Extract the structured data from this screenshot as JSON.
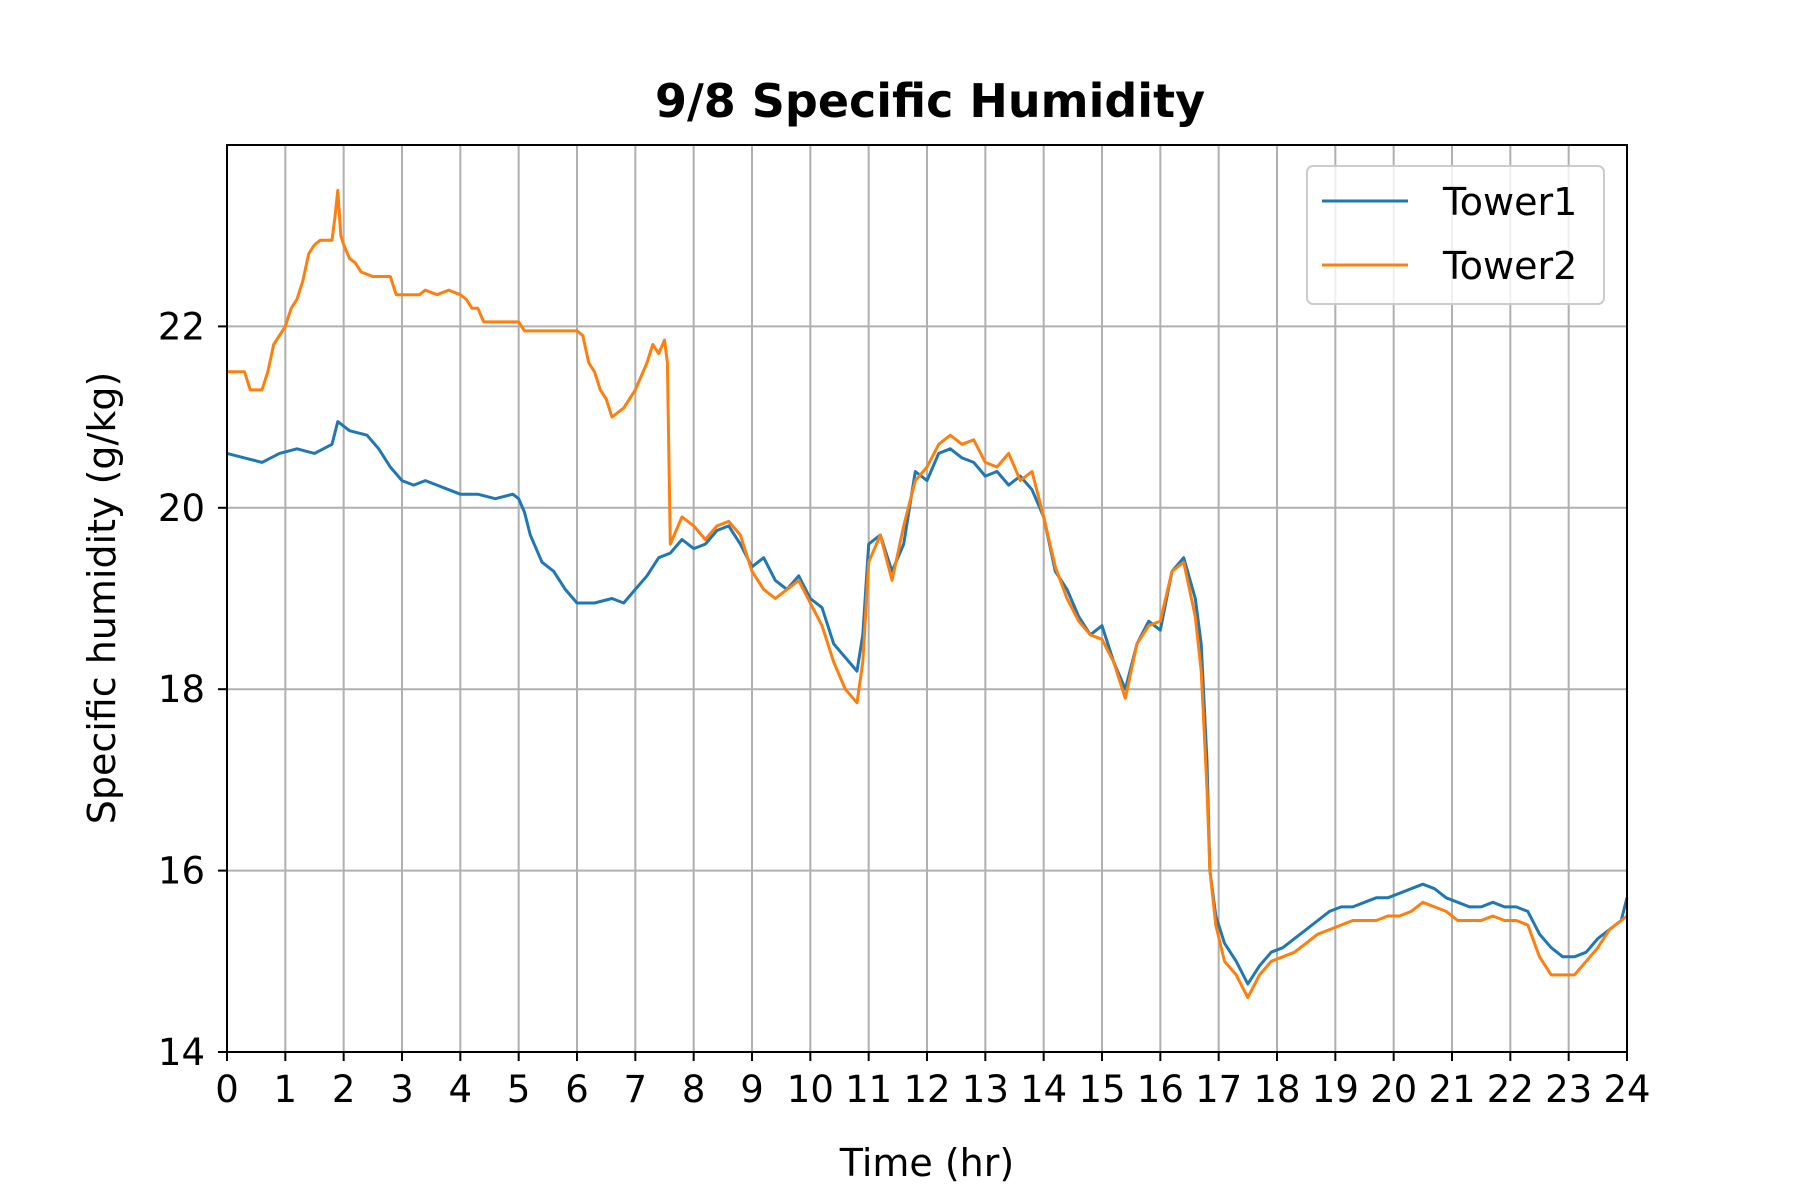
{
  "chart_data": {
    "type": "line",
    "title": "9/8 Specific Humidity",
    "xlabel": "Time (hr)",
    "ylabel": "Specific humidity (g/kg)",
    "xlim": [
      0,
      24
    ],
    "ylim": [
      14,
      24
    ],
    "xticks": [
      0,
      1,
      2,
      3,
      4,
      5,
      6,
      7,
      8,
      9,
      10,
      11,
      12,
      13,
      14,
      15,
      16,
      17,
      18,
      19,
      20,
      21,
      22,
      23,
      24
    ],
    "yticks": [
      14,
      16,
      18,
      20,
      22
    ],
    "grid": true,
    "legend_position": "top-right",
    "series": [
      {
        "name": "Tower1",
        "color": "#1f77b4",
        "points": [
          [
            0,
            20.6
          ],
          [
            0.3,
            20.55
          ],
          [
            0.6,
            20.5
          ],
          [
            0.9,
            20.6
          ],
          [
            1.2,
            20.65
          ],
          [
            1.5,
            20.6
          ],
          [
            1.8,
            20.7
          ],
          [
            1.9,
            20.95
          ],
          [
            2.1,
            20.85
          ],
          [
            2.4,
            20.8
          ],
          [
            2.6,
            20.65
          ],
          [
            2.8,
            20.45
          ],
          [
            3.0,
            20.3
          ],
          [
            3.2,
            20.25
          ],
          [
            3.4,
            20.3
          ],
          [
            3.6,
            20.25
          ],
          [
            3.8,
            20.2
          ],
          [
            4.0,
            20.15
          ],
          [
            4.3,
            20.15
          ],
          [
            4.6,
            20.1
          ],
          [
            4.9,
            20.15
          ],
          [
            5.0,
            20.1
          ],
          [
            5.1,
            19.95
          ],
          [
            5.2,
            19.7
          ],
          [
            5.4,
            19.4
          ],
          [
            5.6,
            19.3
          ],
          [
            5.8,
            19.1
          ],
          [
            6.0,
            18.95
          ],
          [
            6.3,
            18.95
          ],
          [
            6.6,
            19.0
          ],
          [
            6.8,
            18.95
          ],
          [
            7.0,
            19.1
          ],
          [
            7.2,
            19.25
          ],
          [
            7.4,
            19.45
          ],
          [
            7.6,
            19.5
          ],
          [
            7.8,
            19.65
          ],
          [
            8.0,
            19.55
          ],
          [
            8.2,
            19.6
          ],
          [
            8.4,
            19.75
          ],
          [
            8.6,
            19.8
          ],
          [
            8.8,
            19.6
          ],
          [
            9.0,
            19.35
          ],
          [
            9.2,
            19.45
          ],
          [
            9.4,
            19.2
          ],
          [
            9.6,
            19.1
          ],
          [
            9.8,
            19.25
          ],
          [
            10.0,
            19.0
          ],
          [
            10.2,
            18.9
          ],
          [
            10.4,
            18.5
          ],
          [
            10.6,
            18.35
          ],
          [
            10.8,
            18.2
          ],
          [
            10.9,
            18.6
          ],
          [
            11.0,
            19.6
          ],
          [
            11.2,
            19.7
          ],
          [
            11.4,
            19.3
          ],
          [
            11.6,
            19.6
          ],
          [
            11.8,
            20.4
          ],
          [
            12.0,
            20.3
          ],
          [
            12.2,
            20.6
          ],
          [
            12.4,
            20.65
          ],
          [
            12.6,
            20.55
          ],
          [
            12.8,
            20.5
          ],
          [
            13.0,
            20.35
          ],
          [
            13.2,
            20.4
          ],
          [
            13.4,
            20.25
          ],
          [
            13.6,
            20.35
          ],
          [
            13.8,
            20.2
          ],
          [
            14.0,
            19.9
          ],
          [
            14.2,
            19.3
          ],
          [
            14.4,
            19.1
          ],
          [
            14.6,
            18.8
          ],
          [
            14.8,
            18.6
          ],
          [
            15.0,
            18.7
          ],
          [
            15.2,
            18.3
          ],
          [
            15.4,
            18.0
          ],
          [
            15.6,
            18.5
          ],
          [
            15.8,
            18.75
          ],
          [
            16.0,
            18.65
          ],
          [
            16.2,
            19.3
          ],
          [
            16.4,
            19.45
          ],
          [
            16.6,
            19.0
          ],
          [
            16.7,
            18.5
          ],
          [
            16.8,
            17.2
          ],
          [
            16.85,
            16.0
          ],
          [
            16.95,
            15.5
          ],
          [
            17.1,
            15.2
          ],
          [
            17.3,
            15.0
          ],
          [
            17.5,
            14.75
          ],
          [
            17.7,
            14.95
          ],
          [
            17.9,
            15.1
          ],
          [
            18.1,
            15.15
          ],
          [
            18.3,
            15.25
          ],
          [
            18.5,
            15.35
          ],
          [
            18.7,
            15.45
          ],
          [
            18.9,
            15.55
          ],
          [
            19.1,
            15.6
          ],
          [
            19.3,
            15.6
          ],
          [
            19.5,
            15.65
          ],
          [
            19.7,
            15.7
          ],
          [
            19.9,
            15.7
          ],
          [
            20.1,
            15.75
          ],
          [
            20.3,
            15.8
          ],
          [
            20.5,
            15.85
          ],
          [
            20.7,
            15.8
          ],
          [
            20.9,
            15.7
          ],
          [
            21.1,
            15.65
          ],
          [
            21.3,
            15.6
          ],
          [
            21.5,
            15.6
          ],
          [
            21.7,
            15.65
          ],
          [
            21.9,
            15.6
          ],
          [
            22.1,
            15.6
          ],
          [
            22.3,
            15.55
          ],
          [
            22.5,
            15.3
          ],
          [
            22.7,
            15.15
          ],
          [
            22.9,
            15.05
          ],
          [
            23.1,
            15.05
          ],
          [
            23.3,
            15.1
          ],
          [
            23.5,
            15.25
          ],
          [
            23.7,
            15.35
          ],
          [
            23.9,
            15.45
          ],
          [
            24.0,
            15.7
          ]
        ]
      },
      {
        "name": "Tower2",
        "color": "#ff7f0e",
        "points": [
          [
            0,
            21.5
          ],
          [
            0.3,
            21.5
          ],
          [
            0.4,
            21.3
          ],
          [
            0.6,
            21.3
          ],
          [
            0.7,
            21.5
          ],
          [
            0.8,
            21.8
          ],
          [
            0.9,
            21.9
          ],
          [
            1.0,
            22.0
          ],
          [
            1.1,
            22.2
          ],
          [
            1.2,
            22.3
          ],
          [
            1.3,
            22.5
          ],
          [
            1.4,
            22.8
          ],
          [
            1.5,
            22.9
          ],
          [
            1.6,
            22.95
          ],
          [
            1.7,
            22.95
          ],
          [
            1.8,
            22.95
          ],
          [
            1.85,
            23.2
          ],
          [
            1.9,
            23.5
          ],
          [
            1.95,
            23.0
          ],
          [
            2.0,
            22.9
          ],
          [
            2.1,
            22.75
          ],
          [
            2.2,
            22.7
          ],
          [
            2.3,
            22.6
          ],
          [
            2.5,
            22.55
          ],
          [
            2.8,
            22.55
          ],
          [
            2.9,
            22.35
          ],
          [
            3.0,
            22.35
          ],
          [
            3.3,
            22.35
          ],
          [
            3.4,
            22.4
          ],
          [
            3.6,
            22.35
          ],
          [
            3.8,
            22.4
          ],
          [
            4.0,
            22.35
          ],
          [
            4.1,
            22.3
          ],
          [
            4.2,
            22.2
          ],
          [
            4.3,
            22.2
          ],
          [
            4.4,
            22.05
          ],
          [
            4.6,
            22.05
          ],
          [
            5.0,
            22.05
          ],
          [
            5.1,
            21.95
          ],
          [
            5.3,
            21.95
          ],
          [
            5.5,
            21.95
          ],
          [
            5.8,
            21.95
          ],
          [
            6.0,
            21.95
          ],
          [
            6.1,
            21.9
          ],
          [
            6.2,
            21.6
          ],
          [
            6.3,
            21.5
          ],
          [
            6.4,
            21.3
          ],
          [
            6.5,
            21.2
          ],
          [
            6.6,
            21.0
          ],
          [
            6.8,
            21.1
          ],
          [
            6.9,
            21.2
          ],
          [
            7.0,
            21.3
          ],
          [
            7.2,
            21.6
          ],
          [
            7.3,
            21.8
          ],
          [
            7.4,
            21.7
          ],
          [
            7.5,
            21.85
          ],
          [
            7.55,
            21.6
          ],
          [
            7.6,
            19.6
          ],
          [
            7.8,
            19.9
          ],
          [
            8.0,
            19.8
          ],
          [
            8.2,
            19.65
          ],
          [
            8.4,
            19.8
          ],
          [
            8.6,
            19.85
          ],
          [
            8.8,
            19.7
          ],
          [
            9.0,
            19.3
          ],
          [
            9.2,
            19.1
          ],
          [
            9.4,
            19.0
          ],
          [
            9.6,
            19.1
          ],
          [
            9.8,
            19.2
          ],
          [
            10.0,
            18.95
          ],
          [
            10.2,
            18.7
          ],
          [
            10.4,
            18.3
          ],
          [
            10.6,
            18.0
          ],
          [
            10.8,
            17.85
          ],
          [
            10.9,
            18.3
          ],
          [
            11.0,
            19.4
          ],
          [
            11.2,
            19.7
          ],
          [
            11.4,
            19.2
          ],
          [
            11.6,
            19.8
          ],
          [
            11.8,
            20.3
          ],
          [
            12.0,
            20.45
          ],
          [
            12.2,
            20.7
          ],
          [
            12.4,
            20.8
          ],
          [
            12.6,
            20.7
          ],
          [
            12.8,
            20.75
          ],
          [
            13.0,
            20.5
          ],
          [
            13.2,
            20.45
          ],
          [
            13.4,
            20.6
          ],
          [
            13.6,
            20.3
          ],
          [
            13.8,
            20.4
          ],
          [
            14.0,
            19.9
          ],
          [
            14.2,
            19.35
          ],
          [
            14.4,
            19.0
          ],
          [
            14.6,
            18.75
          ],
          [
            14.8,
            18.6
          ],
          [
            15.0,
            18.55
          ],
          [
            15.2,
            18.3
          ],
          [
            15.4,
            17.9
          ],
          [
            15.6,
            18.5
          ],
          [
            15.8,
            18.7
          ],
          [
            16.0,
            18.75
          ],
          [
            16.2,
            19.3
          ],
          [
            16.4,
            19.4
          ],
          [
            16.6,
            18.8
          ],
          [
            16.7,
            18.2
          ],
          [
            16.8,
            16.9
          ],
          [
            16.85,
            16.0
          ],
          [
            16.95,
            15.4
          ],
          [
            17.1,
            15.0
          ],
          [
            17.3,
            14.85
          ],
          [
            17.5,
            14.6
          ],
          [
            17.7,
            14.85
          ],
          [
            17.9,
            15.0
          ],
          [
            18.1,
            15.05
          ],
          [
            18.3,
            15.1
          ],
          [
            18.5,
            15.2
          ],
          [
            18.7,
            15.3
          ],
          [
            18.9,
            15.35
          ],
          [
            19.1,
            15.4
          ],
          [
            19.3,
            15.45
          ],
          [
            19.5,
            15.45
          ],
          [
            19.7,
            15.45
          ],
          [
            19.9,
            15.5
          ],
          [
            20.1,
            15.5
          ],
          [
            20.3,
            15.55
          ],
          [
            20.5,
            15.65
          ],
          [
            20.7,
            15.6
          ],
          [
            20.9,
            15.55
          ],
          [
            21.1,
            15.45
          ],
          [
            21.3,
            15.45
          ],
          [
            21.5,
            15.45
          ],
          [
            21.7,
            15.5
          ],
          [
            21.9,
            15.45
          ],
          [
            22.1,
            15.45
          ],
          [
            22.3,
            15.4
          ],
          [
            22.5,
            15.05
          ],
          [
            22.7,
            14.85
          ],
          [
            22.9,
            14.85
          ],
          [
            23.1,
            14.85
          ],
          [
            23.3,
            15.0
          ],
          [
            23.5,
            15.15
          ],
          [
            23.7,
            15.35
          ],
          [
            23.9,
            15.45
          ],
          [
            24.0,
            15.5
          ]
        ]
      }
    ]
  }
}
